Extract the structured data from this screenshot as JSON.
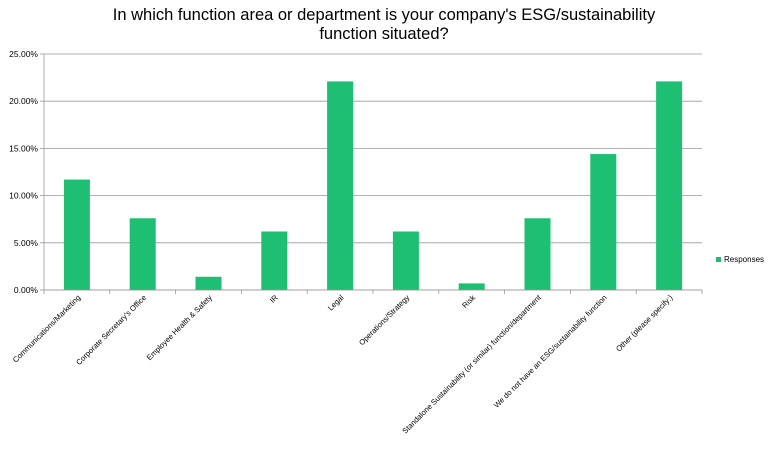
{
  "chart_data": {
    "type": "bar",
    "title_lines": [
      "In which function area or department is your company's ESG/sustainability",
      "function situated?"
    ],
    "categories": [
      "Communications/Marketing",
      "Corporate Secretary's Office",
      "Employee Health & Safety",
      "IR",
      "Legal",
      "Operations/Strategy",
      "Risk",
      "Standalone Sustainability (or similar) function/department",
      "We do not have an ESG/sustainability function",
      "Other (please specify:)"
    ],
    "series": [
      {
        "name": "Responses",
        "values": [
          11.7,
          7.6,
          1.4,
          6.2,
          22.1,
          6.2,
          0.7,
          7.6,
          14.4,
          22.1
        ]
      }
    ],
    "yticks": [
      "0.00%",
      "5.00%",
      "10.00%",
      "15.00%",
      "20.00%",
      "25.00%"
    ],
    "ylim": [
      0,
      25
    ],
    "grid": true,
    "legend_position": "right",
    "bar_color": "#1fbf73",
    "grid_color": "#9a9a9a"
  }
}
